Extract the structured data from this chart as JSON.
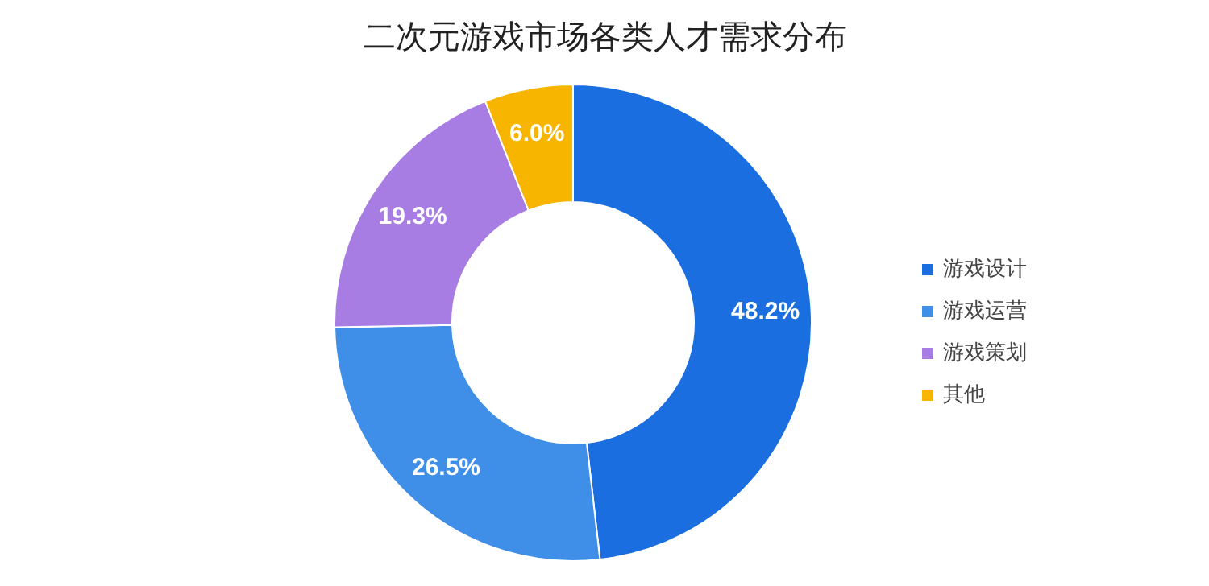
{
  "chart_data": {
    "type": "donut",
    "title": "二次元游戏市场各类人才需求分布",
    "categories": [
      "游戏设计",
      "游戏运营",
      "游戏策划",
      "其他"
    ],
    "values": [
      48.2,
      26.5,
      19.3,
      6.0
    ],
    "colors": [
      "#1a6ee0",
      "#3f8fe8",
      "#a77de3",
      "#f7b500"
    ],
    "value_labels": [
      "48.2%",
      "26.5%",
      "19.3%",
      "6.0%"
    ],
    "legend": "right"
  }
}
